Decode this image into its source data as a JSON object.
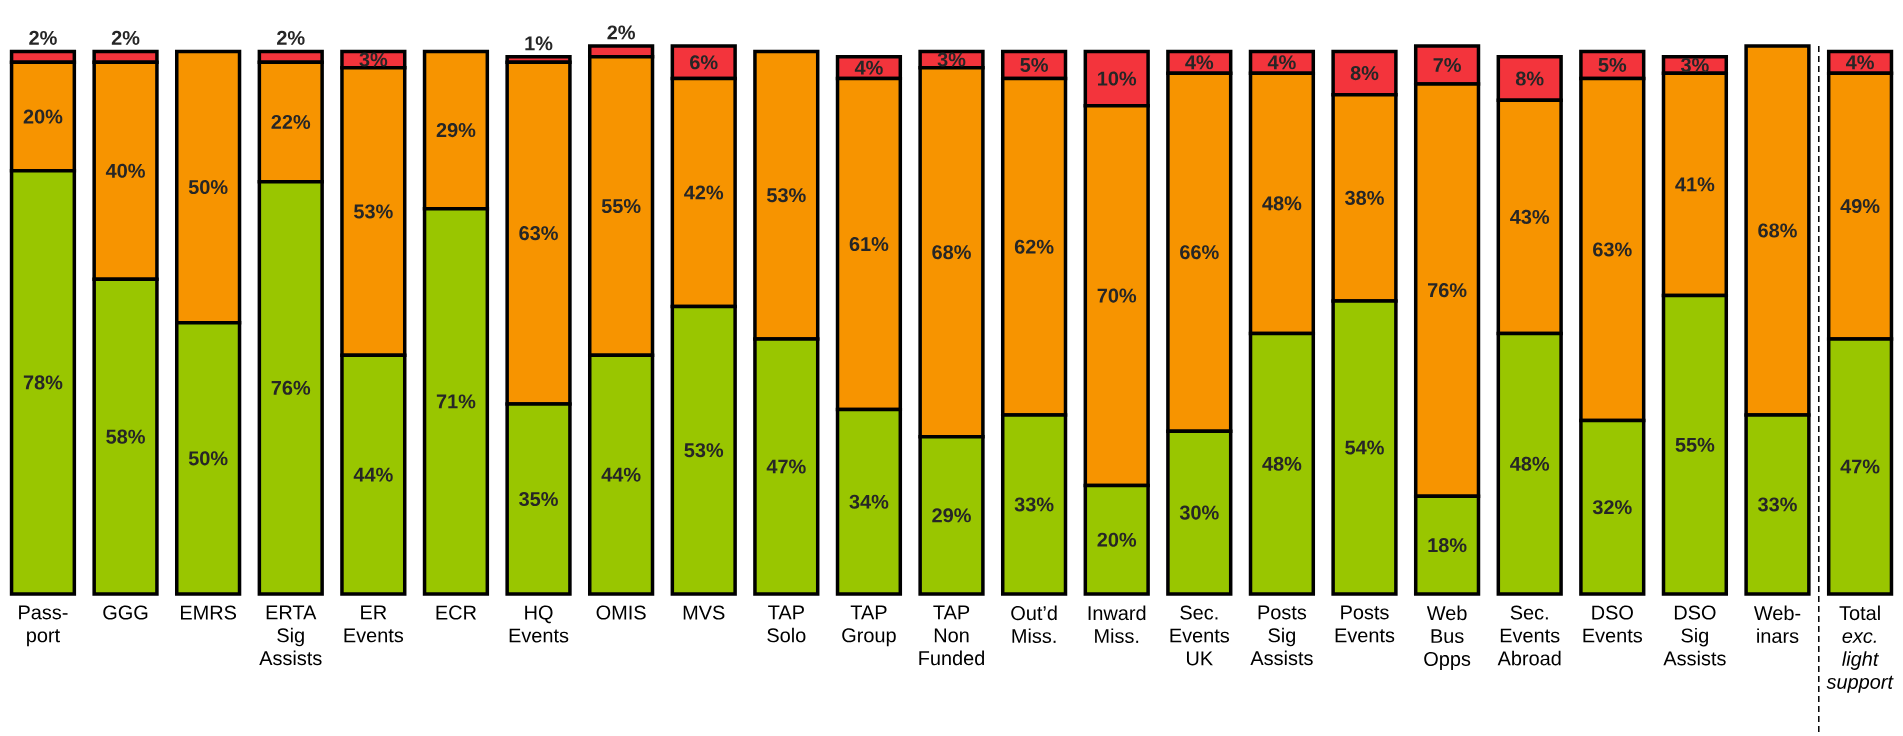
{
  "chart_data": {
    "type": "bar",
    "stacked": true,
    "categories": [
      "Pass-port",
      "GGG",
      "EMRS",
      "ERTA Sig Assists",
      "ER Events",
      "ECR",
      "HQ Events",
      "OMIS",
      "MVS",
      "TAP Solo",
      "TAP Group",
      "TAP Non Funded",
      "Out’d Miss.",
      "Inward Miss.",
      "Sec. Events UK",
      "Posts Sig Assists",
      "Posts Events",
      "Web Bus Opps",
      "Sec. Events Abroad",
      "DSO Events",
      "DSO Sig Assists",
      "Web-inars",
      "Total *exc. light support*"
    ],
    "series": [
      {
        "color": "#99c600",
        "values": [
          78,
          58,
          50,
          76,
          44,
          71,
          35,
          44,
          53,
          47,
          34,
          29,
          33,
          20,
          30,
          48,
          54,
          18,
          48,
          32,
          55,
          33,
          47
        ],
        "value_labels": [
          "78%",
          "58%",
          "50%",
          "76%",
          "44%",
          "71%",
          "35%",
          "44%",
          "53%",
          "47%",
          "34%",
          "29%",
          "33%",
          "20%",
          "30%",
          "48%",
          "54%",
          "18%",
          "48%",
          "32%",
          "55%",
          "33%",
          "47%"
        ]
      },
      {
        "color": "#f79400",
        "values": [
          20,
          40,
          50,
          22,
          53,
          29,
          63,
          55,
          42,
          53,
          61,
          68,
          62,
          70,
          66,
          48,
          38,
          76,
          43,
          63,
          41,
          68,
          49
        ],
        "value_labels": [
          "20%",
          "40%",
          "50%",
          "22%",
          "53%",
          "29%",
          "63%",
          "55%",
          "42%",
          "53%",
          "61%",
          "68%",
          "62%",
          "70%",
          "66%",
          "48%",
          "38%",
          "76%",
          "43%",
          "63%",
          "41%",
          "68%",
          "49%"
        ]
      },
      {
        "color": "#f3343c",
        "values": [
          2,
          2,
          0,
          2,
          3,
          0,
          1,
          2,
          6,
          0,
          4,
          3,
          5,
          10,
          4,
          4,
          8,
          7,
          8,
          5,
          3,
          0,
          4
        ],
        "value_labels": [
          "2%",
          "2%",
          null,
          "2%",
          "3%",
          null,
          "1%",
          "2%",
          "6%",
          null,
          "4%",
          "3%",
          "5%",
          "10%",
          "4%",
          "4%",
          "8%",
          "7%",
          "8%",
          "5%",
          "3%",
          null,
          "4%"
        ]
      }
    ]
  }
}
